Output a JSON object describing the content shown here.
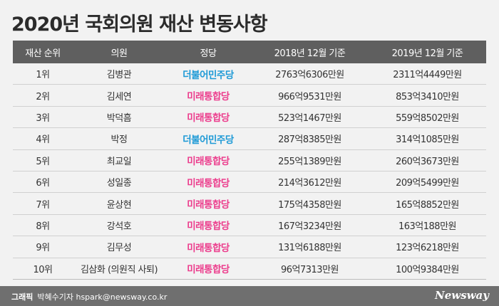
{
  "title": "2020년 국회의원 재산 변동사항",
  "table": {
    "headers": [
      "재산 순위",
      "의원",
      "정당",
      "2018년 12월 기준",
      "2019년 12월 기준"
    ],
    "rows": [
      {
        "rank": "1위",
        "name": "김병관",
        "party": "더불어민주당",
        "party_color": "blue",
        "y2018": "2763억6306만원",
        "y2019": "2311억4449만원"
      },
      {
        "rank": "2위",
        "name": "김세연",
        "party": "미래통합당",
        "party_color": "pink",
        "y2018": "966억9531만원",
        "y2019": "853억3410만원"
      },
      {
        "rank": "3위",
        "name": "박덕흠",
        "party": "미래통합당",
        "party_color": "pink",
        "y2018": "523억1467만원",
        "y2019": "559억8502만원"
      },
      {
        "rank": "4위",
        "name": "박정",
        "party": "더불어민주당",
        "party_color": "blue",
        "y2018": "287억8385만원",
        "y2019": "314억1085만원"
      },
      {
        "rank": "5위",
        "name": "최교일",
        "party": "미래통합당",
        "party_color": "pink",
        "y2018": "255억1389만원",
        "y2019": "260억3673만원"
      },
      {
        "rank": "6위",
        "name": "성일종",
        "party": "미래통합당",
        "party_color": "pink",
        "y2018": "214억3612만원",
        "y2019": "209억5499만원"
      },
      {
        "rank": "7위",
        "name": "윤상현",
        "party": "미래통합당",
        "party_color": "pink",
        "y2018": "175억4358만원",
        "y2019": "165억8852만원"
      },
      {
        "rank": "8위",
        "name": "강석호",
        "party": "미래통합당",
        "party_color": "pink",
        "y2018": "167억3234만원",
        "y2019": "163억188만원"
      },
      {
        "rank": "9위",
        "name": "김무성",
        "party": "미래통합당",
        "party_color": "pink",
        "y2018": "131억6188만원",
        "y2019": "123억6218만원"
      },
      {
        "rank": "10위",
        "name": "김삼화 (의원직 사퇴)",
        "party": "미래통합당",
        "party_color": "pink",
        "y2018": "96억7313만원",
        "y2019": "100억9384만원"
      }
    ]
  },
  "colors": {
    "blue_party": "#1e9ad6",
    "pink_party": "#ec3c8c",
    "header_bg": "#5f5f5f",
    "footer_bg": "#6f6f6f"
  },
  "footer": {
    "credit_label": "그래픽",
    "credit_text": "박혜수기자 hspark@newsway.co.kr",
    "logo": "Newsway"
  }
}
